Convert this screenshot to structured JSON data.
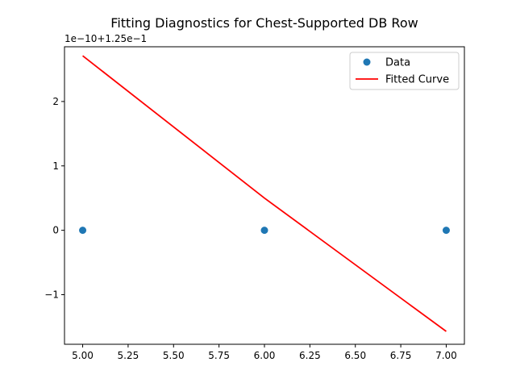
{
  "chart_data": {
    "type": "scatter",
    "title": "Fitting Diagnostics for Chest-Supported DB Row",
    "xlabel": "",
    "ylabel": "",
    "axis_offset_label": "1e−10+1.25e−1",
    "xlim": [
      4.9,
      7.1
    ],
    "ylim": [
      -1.77,
      2.85
    ],
    "x_ticks": [
      5.0,
      5.25,
      5.5,
      5.75,
      6.0,
      6.25,
      6.5,
      6.75,
      7.0
    ],
    "x_tick_labels": [
      "5.00",
      "5.25",
      "5.50",
      "5.75",
      "6.00",
      "6.25",
      "6.50",
      "6.75",
      "7.00"
    ],
    "y_ticks": [
      -1,
      0,
      1,
      2
    ],
    "y_tick_labels": [
      "−1",
      "0",
      "1",
      "2"
    ],
    "grid": false,
    "legend_position": "top-right",
    "series": [
      {
        "name": "Data",
        "kind": "scatter",
        "color": "#1f77b4",
        "x": [
          5,
          6,
          7
        ],
        "y": [
          0,
          0,
          0
        ]
      },
      {
        "name": "Fitted Curve",
        "kind": "line",
        "color": "#ff0000",
        "x": [
          5,
          6,
          7
        ],
        "y": [
          2.71,
          0.5,
          -1.57
        ]
      }
    ]
  }
}
